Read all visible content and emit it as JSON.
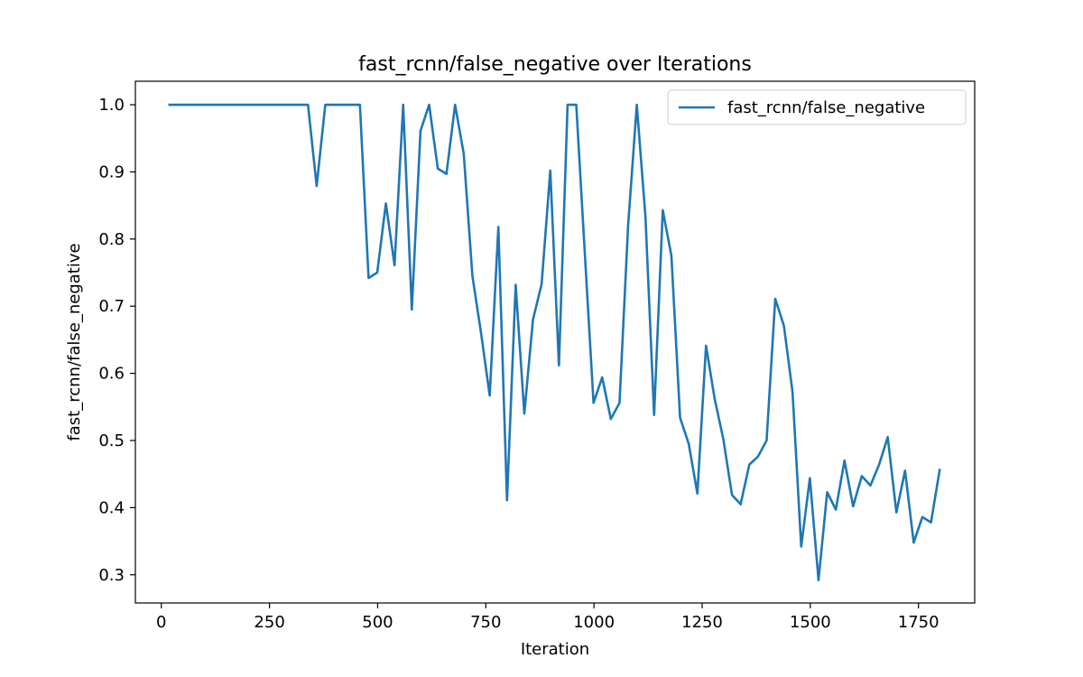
{
  "chart_data": {
    "type": "line",
    "title": "fast_rcnn/false_negative over Iterations",
    "xlabel": "Iteration",
    "ylabel": "fast_rcnn/false_negative",
    "xlim": [
      -60,
      1880
    ],
    "ylim": [
      0.258,
      1.035
    ],
    "xticks": [
      0,
      250,
      500,
      750,
      1000,
      1250,
      1500,
      1750
    ],
    "xtick_labels": [
      "0",
      "250",
      "500",
      "750",
      "1000",
      "1250",
      "1500",
      "1750"
    ],
    "yticks": [
      0.3,
      0.4,
      0.5,
      0.6,
      0.7,
      0.8,
      0.9,
      1.0
    ],
    "ytick_labels": [
      "0.3",
      "0.4",
      "0.5",
      "0.6",
      "0.7",
      "0.8",
      "0.9",
      "1.0"
    ],
    "grid": false,
    "legend_position": "top-right",
    "series": [
      {
        "name": "fast_rcnn/false_negative",
        "color": "#1f77b4",
        "x": [
          19,
          39,
          59,
          79,
          99,
          119,
          139,
          159,
          179,
          199,
          219,
          239,
          259,
          279,
          299,
          319,
          339,
          359,
          379,
          399,
          419,
          439,
          459,
          479,
          499,
          519,
          539,
          559,
          579,
          599,
          619,
          639,
          659,
          679,
          699,
          719,
          739,
          759,
          779,
          799,
          819,
          839,
          859,
          879,
          899,
          919,
          939,
          959,
          979,
          999,
          1019,
          1039,
          1059,
          1079,
          1099,
          1119,
          1139,
          1159,
          1179,
          1199,
          1219,
          1239,
          1259,
          1279,
          1299,
          1319,
          1339,
          1359,
          1379,
          1399,
          1419,
          1439,
          1459,
          1479,
          1499,
          1519,
          1539,
          1559,
          1579,
          1599,
          1619,
          1639,
          1659,
          1679,
          1699,
          1719,
          1739,
          1759,
          1779,
          1799
        ],
        "y": [
          1.0,
          1.0,
          1.0,
          1.0,
          1.0,
          1.0,
          1.0,
          1.0,
          1.0,
          1.0,
          1.0,
          1.0,
          1.0,
          1.0,
          1.0,
          1.0,
          1.0,
          0.879,
          1.0,
          1.0,
          1.0,
          1.0,
          1.0,
          0.742,
          0.75,
          0.853,
          0.761,
          1.0,
          0.695,
          0.961,
          1.0,
          0.905,
          0.897,
          1.0,
          0.927,
          0.745,
          0.66,
          0.567,
          0.818,
          0.411,
          0.732,
          0.54,
          0.68,
          0.733,
          0.902,
          0.612,
          1.0,
          1.0,
          0.777,
          0.556,
          0.594,
          0.532,
          0.556,
          0.821,
          1.0,
          0.833,
          0.538,
          0.843,
          0.775,
          0.534,
          0.495,
          0.421,
          0.641,
          0.562,
          0.502,
          0.419,
          0.405,
          0.464,
          0.476,
          0.5,
          0.711,
          0.671,
          0.572,
          0.342,
          0.444,
          0.292,
          0.423,
          0.397,
          0.47,
          0.402,
          0.447,
          0.433,
          0.464,
          0.505,
          0.393,
          0.455,
          0.348,
          0.386,
          0.378,
          0.456
        ]
      }
    ]
  }
}
